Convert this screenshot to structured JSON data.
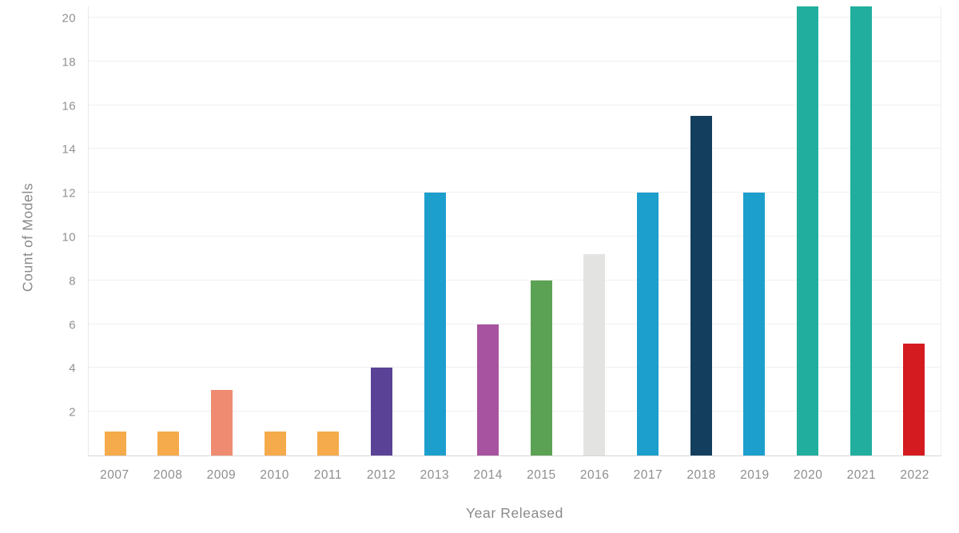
{
  "chart_data": {
    "type": "bar",
    "title": "",
    "xlabel": "Year Released",
    "ylabel": "Count of Models",
    "categories": [
      "2007",
      "2008",
      "2009",
      "2010",
      "2011",
      "2012",
      "2013",
      "2014",
      "2015",
      "2016",
      "2017",
      "2018",
      "2019",
      "2020",
      "2021",
      "2022"
    ],
    "values": [
      1.1,
      1.1,
      3,
      1.1,
      1.1,
      4,
      12,
      6,
      8,
      9.2,
      12,
      15.5,
      12,
      20.5,
      20.5,
      5.1
    ],
    "colors": [
      "#F5AB4B",
      "#F5AB4B",
      "#EE8B70",
      "#F5AB4B",
      "#F5AB4B",
      "#5A4397",
      "#1C9FCD",
      "#A8539F",
      "#5CA254",
      "#E3E3E1",
      "#1C9FCD",
      "#143E5D",
      "#1C9FCD",
      "#21AE9E",
      "#21AE9E",
      "#D41B20"
    ],
    "ylim": [
      0,
      20.55
    ],
    "yticks": [
      2,
      4,
      6,
      8,
      10,
      12,
      14,
      16,
      18,
      20
    ],
    "grid": "horizontal-light-gray",
    "legend": "none",
    "background": "#ffffff",
    "tick_label_color": "#8e8e8e",
    "axis_title_color": "#8a8a8a"
  }
}
